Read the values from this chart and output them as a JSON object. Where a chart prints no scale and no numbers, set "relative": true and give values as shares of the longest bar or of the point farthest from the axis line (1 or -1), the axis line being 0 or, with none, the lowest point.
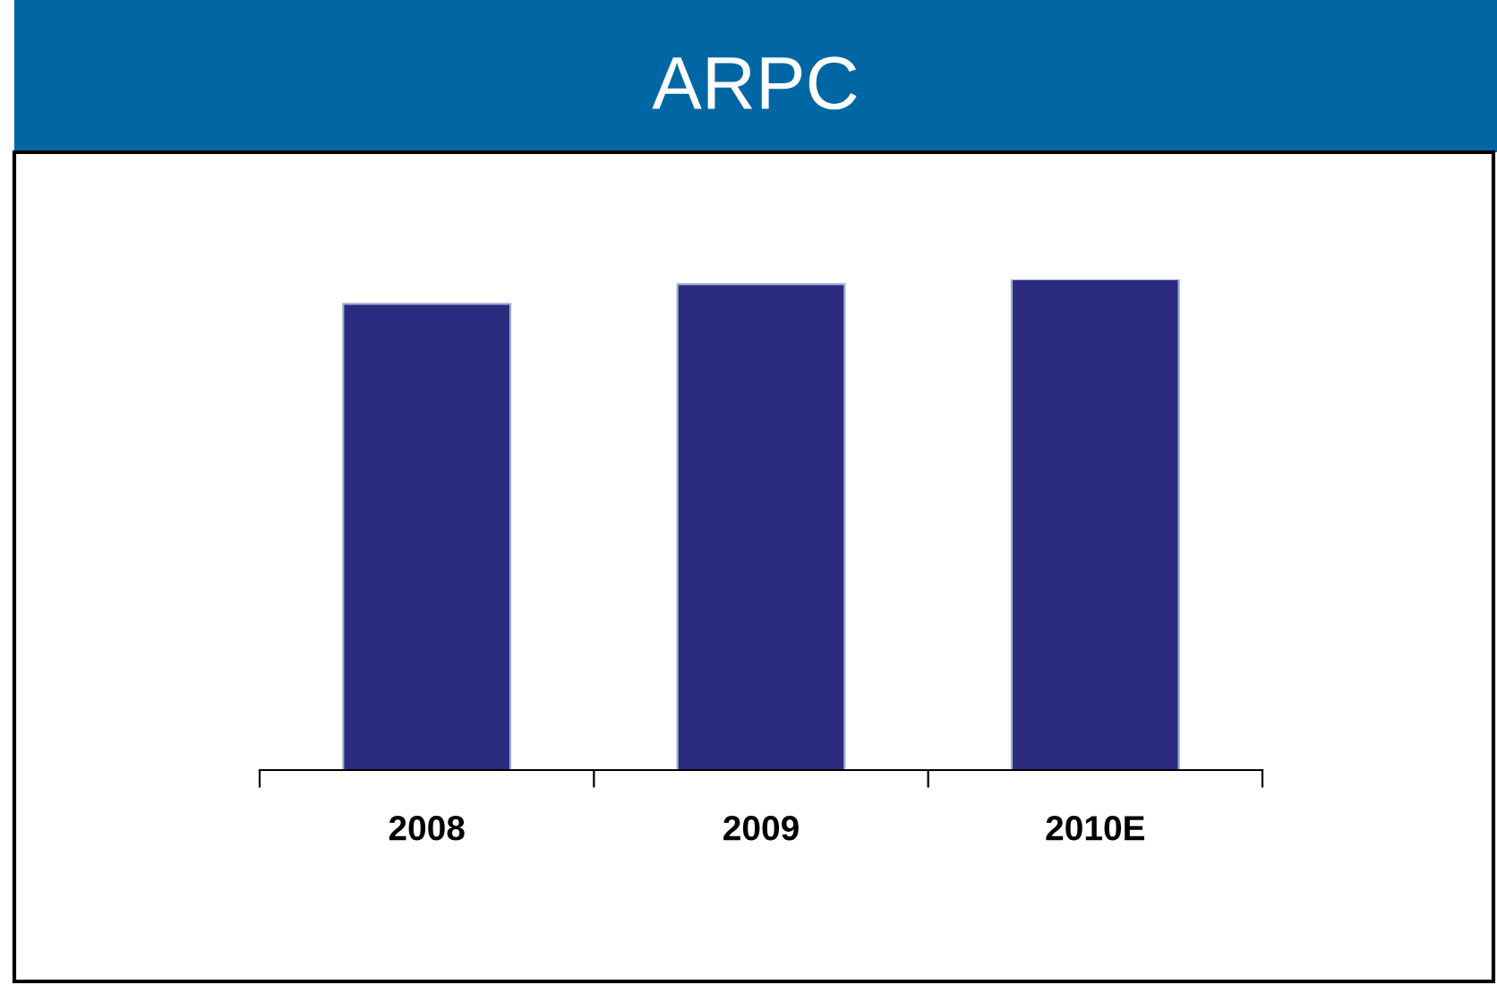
{
  "chart_data": {
    "type": "bar",
    "title": "ARPC",
    "relative": true,
    "categories": [
      "2008",
      "2009",
      "2010E"
    ],
    "values": [
      0.95,
      0.99,
      1
    ],
    "color": "#2b2b80",
    "grid": false,
    "legend": false
  }
}
